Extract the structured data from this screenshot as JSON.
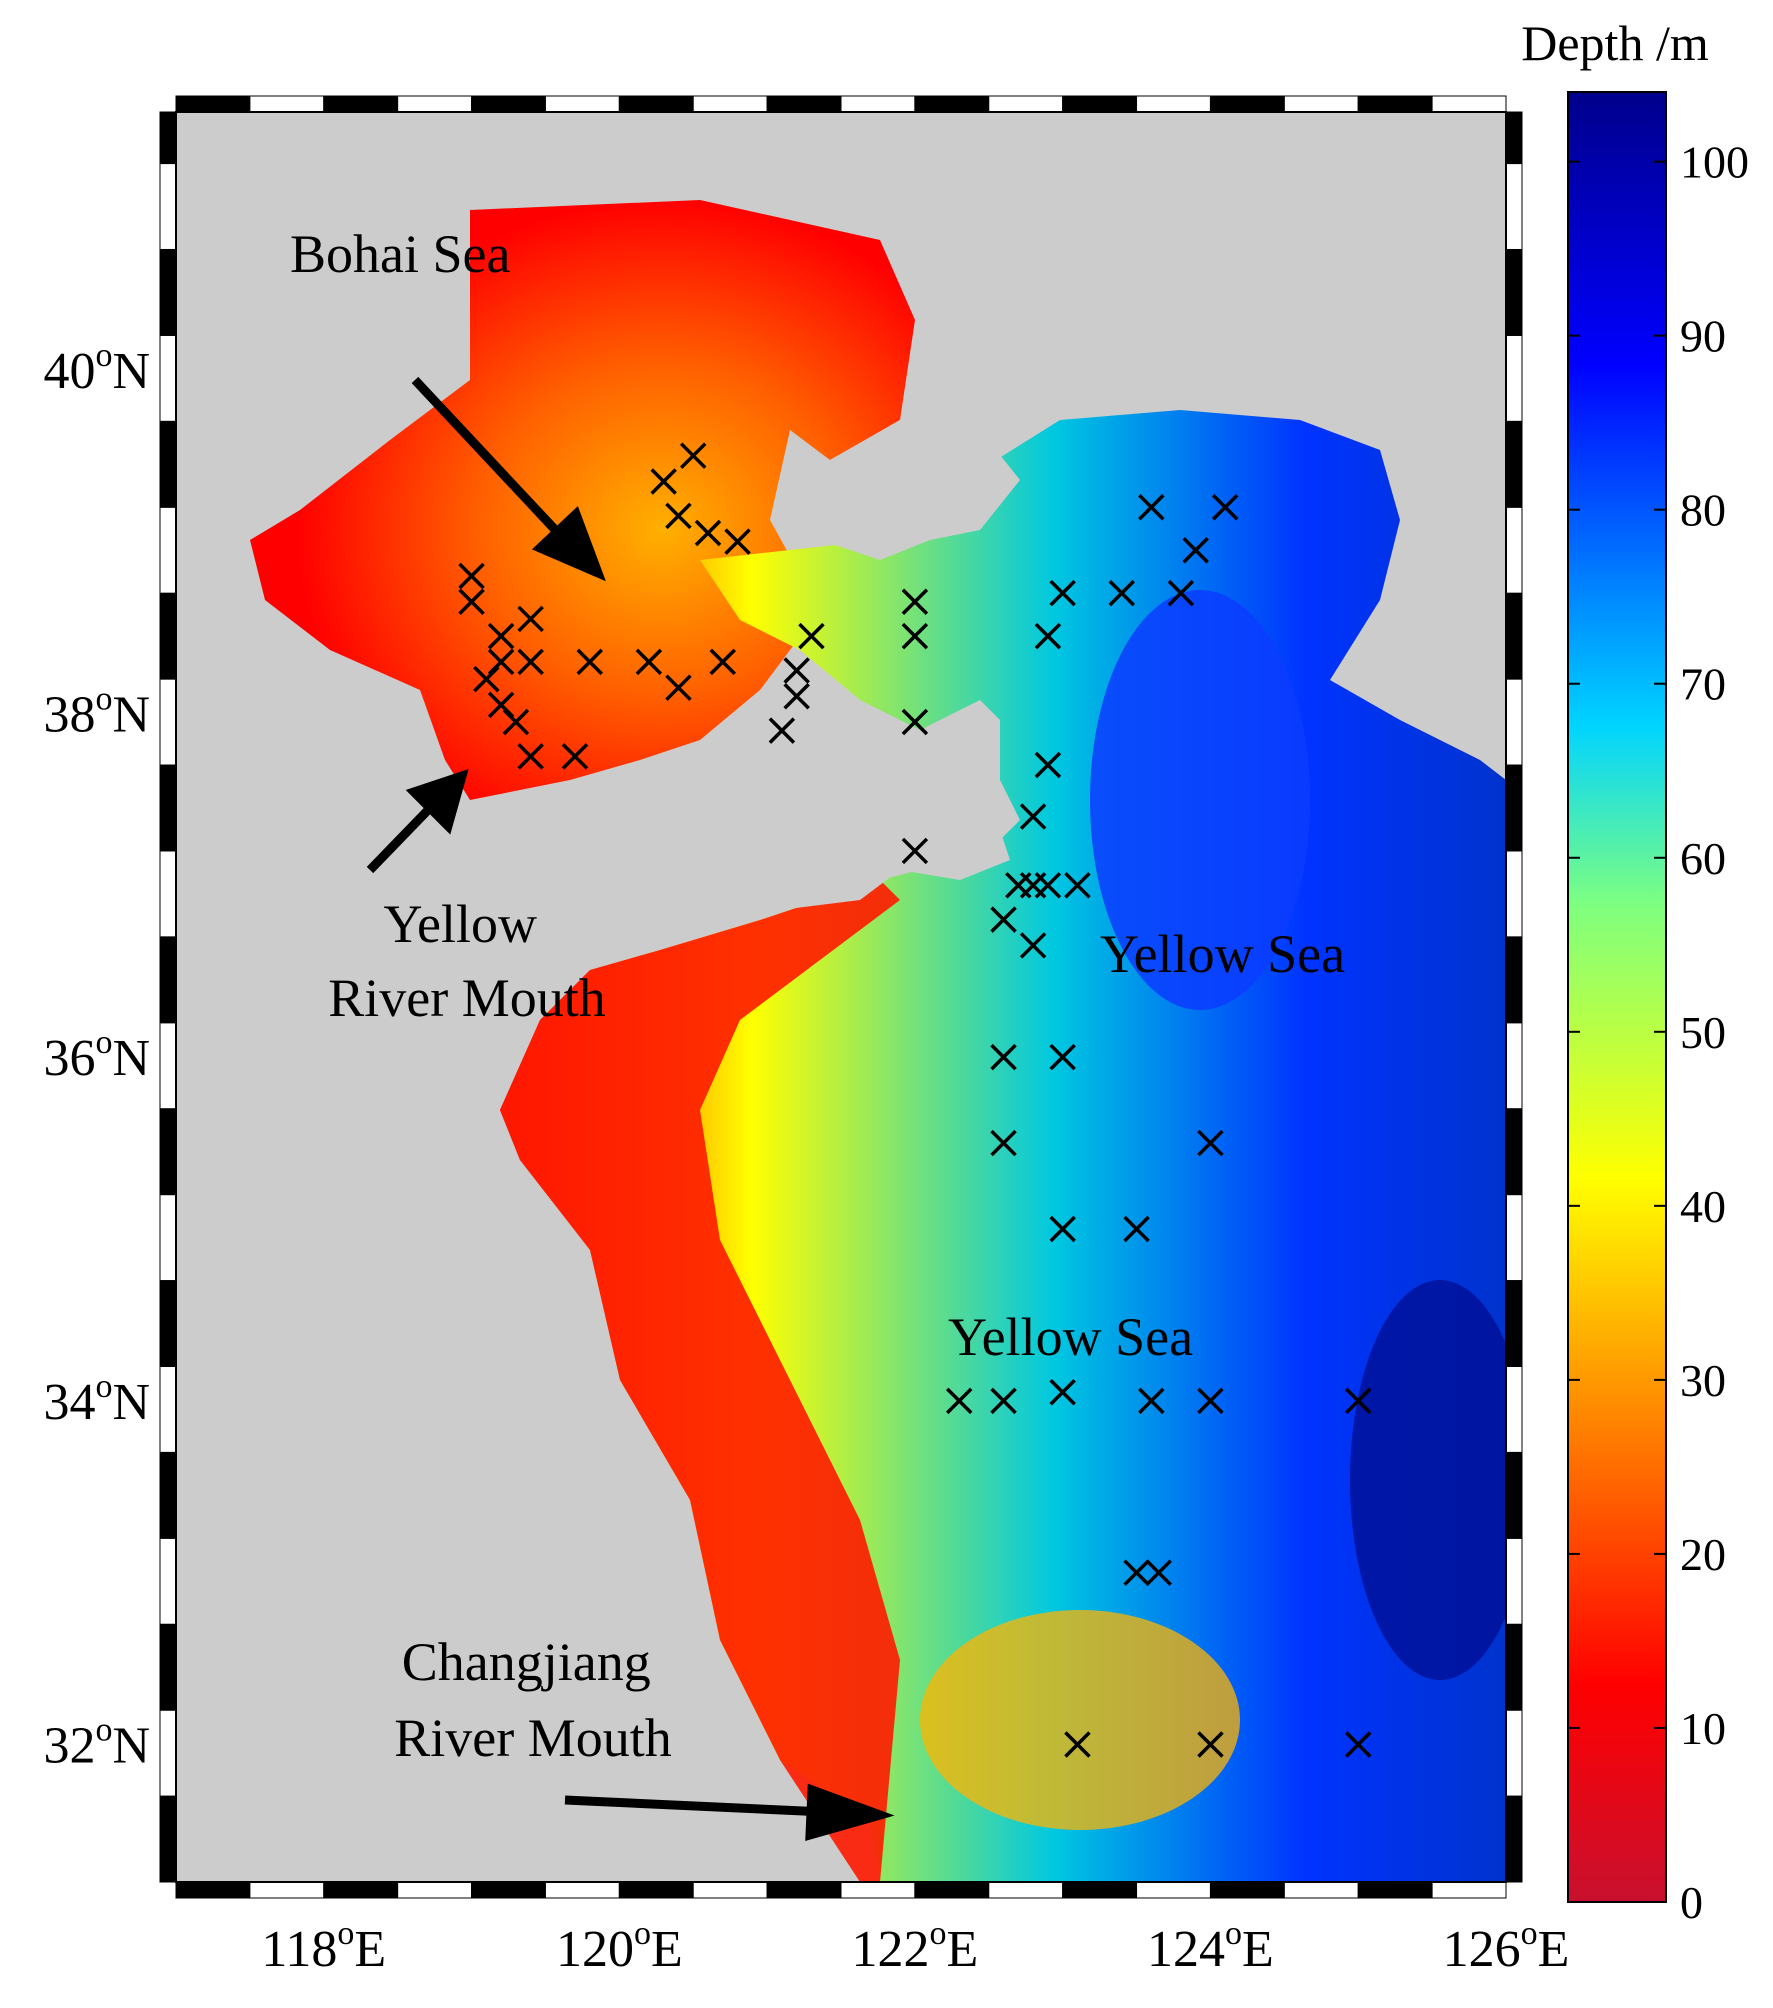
{
  "map": {
    "annotations": [
      {
        "id": "bohai",
        "lines": [
          "Bohai Sea"
        ]
      },
      {
        "id": "yrm",
        "lines": [
          "Yellow",
          "River Mouth"
        ]
      },
      {
        "id": "ys1",
        "lines": [
          "Yellow Sea"
        ]
      },
      {
        "id": "ys2",
        "lines": [
          "Yellow Sea"
        ]
      },
      {
        "id": "crm",
        "lines": [
          "Changjiang",
          "River Mouth"
        ]
      }
    ],
    "lon_ticks": [
      {
        "value": 118,
        "deg": "118",
        "sup": "o",
        "hemi": "E"
      },
      {
        "value": 120,
        "deg": "120",
        "sup": "o",
        "hemi": "E"
      },
      {
        "value": 122,
        "deg": "122",
        "sup": "o",
        "hemi": "E"
      },
      {
        "value": 124,
        "deg": "124",
        "sup": "o",
        "hemi": "E"
      },
      {
        "value": 126,
        "deg": "126",
        "sup": "o",
        "hemi": "E"
      }
    ],
    "lat_ticks": [
      {
        "value": 40,
        "deg": "40",
        "sup": "o",
        "hemi": "N"
      },
      {
        "value": 38,
        "deg": "38",
        "sup": "o",
        "hemi": "N"
      },
      {
        "value": 36,
        "deg": "36",
        "sup": "o",
        "hemi": "N"
      },
      {
        "value": 34,
        "deg": "34",
        "sup": "o",
        "hemi": "N"
      },
      {
        "value": 32,
        "deg": "32",
        "sup": "o",
        "hemi": "N"
      }
    ],
    "lon_range": [
      117,
      126
    ],
    "lat_range": [
      31.2,
      41.5
    ],
    "colors": {
      "land": "#cccccc",
      "frame": "#000000",
      "marker": "#000000"
    }
  },
  "colorbar": {
    "title": "Depth /m",
    "range": [
      0,
      104
    ],
    "ticks": [
      0,
      10,
      20,
      30,
      40,
      50,
      60,
      70,
      80,
      90,
      100
    ],
    "tick_labels": [
      "0",
      "10",
      "20",
      "30",
      "40",
      "50",
      "60",
      "70",
      "80",
      "90",
      "100"
    ],
    "colormap": [
      "#c8102e",
      "#ff0000",
      "#ff7f00",
      "#ffff00",
      "#00d4ff",
      "#0000ff",
      "#00008b"
    ]
  },
  "chart_data": {
    "type": "scatter",
    "title": "",
    "xlabel": "",
    "ylabel": "",
    "xlim": [
      117,
      126
    ],
    "ylim": [
      31.2,
      41.5
    ],
    "series": [
      {
        "name": "",
        "marker": "x",
        "points": [
          [
            120.5,
            39.5
          ],
          [
            120.3,
            39.35
          ],
          [
            120.4,
            39.15
          ],
          [
            120.6,
            39.05
          ],
          [
            120.8,
            39.0
          ],
          [
            119.0,
            38.8
          ],
          [
            119.0,
            38.65
          ],
          [
            119.4,
            38.55
          ],
          [
            119.2,
            38.45
          ],
          [
            119.2,
            38.3
          ],
          [
            119.1,
            38.2
          ],
          [
            119.2,
            38.05
          ],
          [
            119.3,
            37.95
          ],
          [
            119.4,
            37.75
          ],
          [
            119.7,
            37.75
          ],
          [
            119.4,
            38.3
          ],
          [
            119.8,
            38.3
          ],
          [
            120.2,
            38.3
          ],
          [
            120.4,
            38.15
          ],
          [
            120.7,
            38.3
          ],
          [
            121.3,
            38.45
          ],
          [
            121.2,
            38.25
          ],
          [
            121.2,
            38.1
          ],
          [
            121.1,
            37.9
          ],
          [
            122.0,
            38.65
          ],
          [
            122.0,
            38.45
          ],
          [
            122.0,
            37.95
          ],
          [
            122.0,
            37.2
          ],
          [
            122.9,
            38.45
          ],
          [
            122.9,
            37.7
          ],
          [
            122.8,
            37.4
          ],
          [
            122.7,
            37.0
          ],
          [
            122.8,
            37.0
          ],
          [
            122.9,
            37.0
          ],
          [
            123.1,
            37.0
          ],
          [
            122.6,
            36.8
          ],
          [
            122.8,
            36.65
          ],
          [
            122.6,
            36.0
          ],
          [
            123.0,
            36.0
          ],
          [
            122.6,
            35.5
          ],
          [
            123.0,
            35.0
          ],
          [
            123.5,
            35.0
          ],
          [
            124.0,
            35.5
          ],
          [
            123.0,
            38.7
          ],
          [
            123.4,
            38.7
          ],
          [
            123.8,
            38.7
          ],
          [
            123.6,
            39.2
          ],
          [
            124.1,
            39.2
          ],
          [
            123.9,
            38.95
          ],
          [
            122.3,
            34.0
          ],
          [
            122.6,
            34.0
          ],
          [
            123.0,
            34.05
          ],
          [
            123.6,
            34.0
          ],
          [
            124.0,
            34.0
          ],
          [
            125.0,
            34.0
          ],
          [
            123.5,
            33.0
          ],
          [
            123.65,
            33.0
          ],
          [
            123.1,
            32.0
          ],
          [
            124.0,
            32.0
          ],
          [
            125.0,
            32.0
          ]
        ]
      }
    ]
  }
}
